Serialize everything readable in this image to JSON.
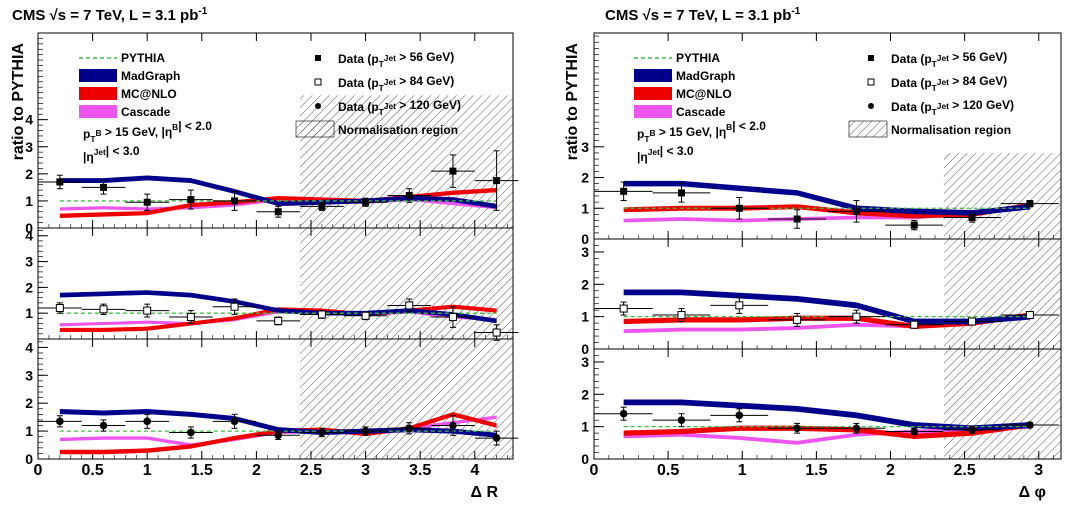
{
  "colors": {
    "pythia": "#44bb44",
    "madgraph": "#00008b",
    "mcatnlo": "#ee0000",
    "cascade": "#ee55ee",
    "axis": "#000000"
  },
  "chart_data": [
    {
      "type": "line",
      "panel": "left",
      "header": "CMS   √s = 7 TeV, L = 3.1 pb",
      "header_sup": "-1",
      "ylabel": "ratio to PYTHIA",
      "xlabel": "Δ R",
      "xlim": [
        0,
        4.35
      ],
      "xticks": [
        "0",
        "0.5",
        "1",
        "1.5",
        "2",
        "2.5",
        "3",
        "3.5",
        "4"
      ],
      "xtick_values": [
        0,
        0.5,
        1,
        1.5,
        2,
        2.5,
        3,
        3.5,
        4
      ],
      "ylim_top_panel": [
        0,
        7.2
      ],
      "ylim_mid_panel": [
        0,
        4.3
      ],
      "ylim_bot_panel": [
        0,
        4.3
      ],
      "yticks_top": [
        "0",
        "1",
        "2",
        "3",
        "4"
      ],
      "yticks_mid": [
        "1",
        "2",
        "3",
        "4"
      ],
      "yticks_bot": [
        "0",
        "1",
        "2",
        "3",
        "4"
      ],
      "normalisation_region": [
        2.4,
        4.35
      ],
      "legend": {
        "pythia": "PYTHIA",
        "madgraph": "MadGraph",
        "mcatnlo": "MC@NLO",
        "cascade": "Cascade",
        "data56_pre": "Data (p",
        "data56_sub": "T",
        "data56_sup": "Jet",
        "data56_post": " > 56 GeV)",
        "data84_pre": "Data (p",
        "data84_sub": "T",
        "data84_sup": "Jet",
        "data84_post": " > 84 GeV)",
        "data120_pre": "Data (p",
        "data120_sub": "T",
        "data120_sup": "Jet",
        "data120_post": " > 120 GeV)",
        "norm": "Normalisation region"
      },
      "cuts": {
        "line1_pre": "p",
        "line1_sub": "T",
        "line1_sup": "B",
        "line1_post": " > 15 GeV, |η",
        "line1_sup2": "B",
        "line1_post2": "| < 2.0",
        "line2_pre": "|η",
        "line2_sup": "Jet",
        "line2_post": "| < 3.0"
      },
      "x": [
        0.2,
        0.6,
        1.0,
        1.4,
        1.8,
        2.2,
        2.6,
        3.0,
        3.4,
        3.8,
        4.2
      ],
      "panels": [
        {
          "data_label": "Data (pT Jet > 56 GeV)",
          "data_marker": "filled-square",
          "data": [
            1.7,
            1.5,
            0.95,
            1.05,
            1.0,
            0.6,
            0.8,
            0.95,
            1.2,
            2.1,
            1.75
          ],
          "data_err": [
            0.25,
            0.25,
            0.3,
            0.35,
            0.35,
            0.2,
            0.15,
            0.15,
            0.25,
            0.6,
            1.1
          ],
          "pythia": [
            1.0,
            1.0,
            1.0,
            1.0,
            1.0,
            1.0,
            1.0,
            1.0,
            1.0,
            1.0,
            1.0
          ],
          "madgraph": [
            1.75,
            1.75,
            1.85,
            1.75,
            1.35,
            0.9,
            0.95,
            1.0,
            1.1,
            1.05,
            0.8
          ],
          "mcatnlo": [
            0.45,
            0.5,
            0.55,
            0.85,
            0.95,
            1.1,
            1.05,
            1.0,
            1.15,
            1.3,
            1.4
          ],
          "cascade": [
            0.7,
            0.75,
            0.7,
            0.75,
            0.85,
            1.05,
            1.0,
            0.95,
            1.05,
            0.9,
            0.75
          ]
        },
        {
          "data_label": "Data (pT Jet > 84 GeV)",
          "data_marker": "open-square",
          "data": [
            1.2,
            1.15,
            1.1,
            0.85,
            1.25,
            0.7,
            0.95,
            0.9,
            1.3,
            0.85,
            0.25
          ],
          "data_err": [
            0.2,
            0.2,
            0.25,
            0.25,
            0.3,
            0.15,
            0.15,
            0.15,
            0.25,
            0.4,
            0.3
          ],
          "pythia": [
            1.0,
            1.0,
            1.0,
            1.0,
            1.0,
            1.0,
            1.0,
            1.0,
            1.0,
            1.0,
            1.0
          ],
          "madgraph": [
            1.7,
            1.75,
            1.8,
            1.7,
            1.45,
            1.1,
            1.0,
            1.0,
            1.1,
            0.95,
            0.7
          ],
          "mcatnlo": [
            0.35,
            0.35,
            0.4,
            0.6,
            0.8,
            1.15,
            1.1,
            0.95,
            1.1,
            1.25,
            1.1
          ],
          "cascade": [
            0.55,
            0.6,
            0.65,
            0.6,
            0.75,
            1.05,
            1.0,
            0.95,
            1.05,
            0.85,
            0.75
          ]
        },
        {
          "data_label": "Data (pT Jet > 120 GeV)",
          "data_marker": "filled-circle",
          "data": [
            1.35,
            1.2,
            1.35,
            0.95,
            1.35,
            0.85,
            0.95,
            1.0,
            1.1,
            1.2,
            0.75
          ],
          "data_err": [
            0.2,
            0.2,
            0.25,
            0.2,
            0.25,
            0.15,
            0.15,
            0.15,
            0.2,
            0.35,
            0.25
          ],
          "pythia": [
            1.0,
            1.0,
            1.0,
            1.0,
            1.0,
            1.0,
            1.0,
            1.0,
            1.0,
            1.0,
            1.0
          ],
          "madgraph": [
            1.7,
            1.65,
            1.7,
            1.6,
            1.45,
            1.05,
            0.95,
            1.0,
            1.05,
            1.0,
            0.85
          ],
          "mcatnlo": [
            0.25,
            0.25,
            0.3,
            0.45,
            0.75,
            1.0,
            1.05,
            0.9,
            1.1,
            1.6,
            1.2
          ],
          "cascade": [
            0.7,
            0.75,
            0.75,
            0.5,
            0.7,
            0.95,
            1.0,
            0.95,
            1.1,
            1.3,
            1.5
          ]
        }
      ]
    },
    {
      "type": "line",
      "panel": "right",
      "header": "CMS   √s = 7 TeV, L = 3.1 pb",
      "header_sup": "-1",
      "ylabel": "ratio to PYTHIA",
      "xlabel": "Δ φ",
      "xlim": [
        0,
        3.15
      ],
      "xticks": [
        "0",
        "0.5",
        "1",
        "1.5",
        "2",
        "2.5",
        "3"
      ],
      "xtick_values": [
        0,
        0.5,
        1,
        1.5,
        2,
        2.5,
        3
      ],
      "ylim_top_panel": [
        0,
        6.7
      ],
      "ylim_mid_panel": [
        0,
        3.4
      ],
      "ylim_bot_panel": [
        0,
        3.4
      ],
      "yticks_top": [
        "0",
        "1",
        "2",
        "3"
      ],
      "yticks_mid": [
        "0",
        "1",
        "2",
        "3"
      ],
      "yticks_bot": [
        "0",
        "1",
        "2",
        "3"
      ],
      "normalisation_region": [
        2.36,
        3.15
      ],
      "legend": {
        "pythia": "PYTHIA",
        "madgraph": "MadGraph",
        "mcatnlo": "MC@NLO",
        "cascade": "Cascade",
        "data56_pre": "Data (p",
        "data56_sub": "T",
        "data56_sup": "Jet",
        "data56_post": " > 56 GeV)",
        "data84_pre": "Data (p",
        "data84_sub": "T",
        "data84_sup": "Jet",
        "data84_post": " > 84 GeV)",
        "data120_pre": "Data (p",
        "data120_sub": "T",
        "data120_sup": "Jet",
        "data120_post": " > 120 GeV)",
        "norm": "Normalisation region"
      },
      "cuts": {
        "line1_pre": "p",
        "line1_sub": "T",
        "line1_sup": "B",
        "line1_post": " > 15 GeV, |η",
        "line1_sup2": "B",
        "line1_post2": "| < 2.0",
        "line2_pre": "|η",
        "line2_sup": "Jet",
        "line2_post": "| < 3.0"
      },
      "x": [
        0.2,
        0.59,
        0.98,
        1.37,
        1.77,
        2.16,
        2.55,
        2.94
      ],
      "panels": [
        {
          "data_label": "Data (pT Jet > 56 GeV)",
          "data_marker": "filled-square",
          "data": [
            1.55,
            1.5,
            1.0,
            0.65,
            0.9,
            0.45,
            0.7,
            1.15
          ],
          "data_err": [
            0.3,
            0.3,
            0.35,
            0.3,
            0.35,
            0.15,
            0.15,
            0.1
          ],
          "pythia": [
            1.0,
            1.0,
            1.0,
            1.0,
            1.0,
            1.0,
            1.0,
            1.0
          ],
          "madgraph": [
            1.8,
            1.8,
            1.65,
            1.5,
            1.0,
            0.9,
            0.85,
            1.05
          ],
          "mcatnlo": [
            0.95,
            1.0,
            1.0,
            1.05,
            0.85,
            0.75,
            0.8,
            1.1
          ],
          "cascade": [
            0.6,
            0.65,
            0.6,
            0.65,
            0.7,
            0.7,
            0.85,
            1.1
          ]
        },
        {
          "data_label": "Data (pT Jet > 84 GeV)",
          "data_marker": "open-square",
          "data": [
            1.25,
            1.05,
            1.35,
            0.9,
            1.0,
            0.75,
            0.85,
            1.05
          ],
          "data_err": [
            0.2,
            0.2,
            0.25,
            0.2,
            0.2,
            0.1,
            0.1,
            0.08
          ],
          "pythia": [
            1.0,
            1.0,
            1.0,
            1.0,
            1.0,
            1.0,
            1.0,
            1.0
          ],
          "madgraph": [
            1.75,
            1.75,
            1.65,
            1.55,
            1.35,
            0.85,
            0.85,
            1.0
          ],
          "mcatnlo": [
            0.85,
            0.9,
            0.9,
            0.95,
            0.95,
            0.7,
            0.8,
            1.05
          ],
          "cascade": [
            0.55,
            0.6,
            0.6,
            0.65,
            0.75,
            0.7,
            0.85,
            1.05
          ]
        },
        {
          "data_label": "Data (pT Jet > 120 GeV)",
          "data_marker": "filled-circle",
          "data": [
            1.4,
            1.2,
            1.35,
            0.95,
            0.95,
            0.85,
            0.9,
            1.05
          ],
          "data_err": [
            0.2,
            0.2,
            0.2,
            0.15,
            0.15,
            0.1,
            0.1,
            0.08
          ],
          "pythia": [
            1.0,
            1.0,
            1.0,
            1.0,
            1.0,
            1.0,
            1.0,
            1.0
          ],
          "madgraph": [
            1.75,
            1.75,
            1.65,
            1.55,
            1.35,
            1.05,
            0.95,
            1.05
          ],
          "mcatnlo": [
            0.8,
            0.85,
            0.95,
            0.95,
            0.9,
            0.7,
            0.8,
            1.05
          ],
          "cascade": [
            0.7,
            0.75,
            0.65,
            0.5,
            0.75,
            0.85,
            0.9,
            1.0
          ]
        }
      ]
    }
  ]
}
